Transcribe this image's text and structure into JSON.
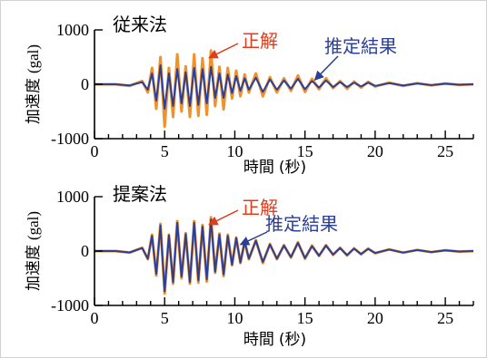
{
  "chart_data": [
    {
      "type": "line",
      "panel_label": "従来法",
      "xlabel": "時間",
      "xunit": "(秒)",
      "ylabel": "加速度",
      "yunit": "(gal)",
      "xlim": [
        0,
        27
      ],
      "ylim": [
        -1000,
        1000
      ],
      "xticks": [
        0,
        5,
        10,
        15,
        20,
        25
      ],
      "yticks": [
        -1000,
        0,
        1000
      ],
      "ytick_labels": [
        "-1000",
        "0",
        "1000"
      ],
      "grid": false,
      "annotations": [
        {
          "text": "正解",
          "color": "#e03c1c",
          "target": {
            "x": 7.9,
            "y": 420
          }
        },
        {
          "text": "推定結果",
          "color": "#2b3f99",
          "target": {
            "x": 15.7,
            "y": 80
          }
        }
      ],
      "series": [
        {
          "color": "#f0922b",
          "x": [
            0,
            1.5,
            2.5,
            3.4,
            3.8,
            4.1,
            4.4,
            4.7,
            5.0,
            5.3,
            5.6,
            5.9,
            6.2,
            6.5,
            6.8,
            7.1,
            7.4,
            7.7,
            8.0,
            8.3,
            8.6,
            8.9,
            9.2,
            9.5,
            9.8,
            10.1,
            10.4,
            10.7,
            11.0,
            11.5,
            12.0,
            12.5,
            13.0,
            13.5,
            14.0,
            14.5,
            15.0,
            15.5,
            16.0,
            16.5,
            17.0,
            17.5,
            18.0,
            18.5,
            19.0,
            19.5,
            20.0,
            21.0,
            22.0,
            23.0,
            24.0,
            25.0,
            26.0,
            27.0
          ],
          "y": [
            0,
            0,
            -30,
            60,
            -150,
            300,
            -450,
            500,
            -780,
            300,
            -600,
            550,
            -500,
            330,
            -600,
            550,
            -580,
            480,
            -560,
            620,
            -400,
            320,
            -460,
            300,
            -260,
            250,
            -220,
            180,
            -150,
            200,
            -220,
            130,
            -150,
            110,
            -120,
            160,
            -140,
            100,
            -90,
            110,
            -70,
            60,
            -80,
            50,
            -60,
            45,
            -40,
            30,
            -30,
            20,
            -20,
            15,
            -10,
            0
          ]
        },
        {
          "color": "#2b3f99",
          "x": [
            0,
            1.5,
            2.5,
            3.4,
            3.8,
            4.1,
            4.4,
            4.7,
            5.0,
            5.3,
            5.6,
            5.9,
            6.2,
            6.5,
            6.8,
            7.1,
            7.4,
            7.7,
            8.0,
            8.3,
            8.6,
            8.9,
            9.2,
            9.5,
            9.8,
            10.1,
            10.4,
            10.7,
            11.0,
            11.5,
            12.0,
            12.5,
            13.0,
            13.5,
            14.0,
            14.5,
            15.0,
            15.5,
            16.0,
            16.5,
            17.0,
            17.5,
            18.0,
            18.5,
            19.0,
            19.5,
            20.0,
            21.0,
            22.0,
            23.0,
            24.0,
            25.0,
            26.0,
            27.0
          ],
          "y": [
            0,
            0,
            -20,
            40,
            -100,
            200,
            -300,
            350,
            -450,
            200,
            -400,
            280,
            -350,
            220,
            -400,
            300,
            -380,
            280,
            -350,
            320,
            -250,
            200,
            -250,
            180,
            -160,
            150,
            -120,
            110,
            -100,
            120,
            -140,
            90,
            -100,
            70,
            -80,
            100,
            -90,
            60,
            -60,
            70,
            -50,
            40,
            -50,
            30,
            -40,
            30,
            -30,
            20,
            -20,
            15,
            -15,
            10,
            -8,
            0
          ]
        }
      ]
    },
    {
      "type": "line",
      "panel_label": "提案法",
      "xlabel": "時間",
      "xunit": "(秒)",
      "ylabel": "加速度",
      "yunit": "(gal)",
      "xlim": [
        0,
        27
      ],
      "ylim": [
        -1000,
        1000
      ],
      "xticks": [
        0,
        5,
        10,
        15,
        20,
        25
      ],
      "yticks": [
        -1000,
        0,
        1000
      ],
      "ytick_labels": [
        "-1000",
        "0",
        "1000"
      ],
      "grid": false,
      "annotations": [
        {
          "text": "正解",
          "color": "#e03c1c",
          "target": {
            "x": 7.9,
            "y": 420
          }
        },
        {
          "text": "推定結果",
          "color": "#2b3f99",
          "target": {
            "x": 10.4,
            "y": 120
          }
        }
      ],
      "series": [
        {
          "color": "#f0922b",
          "x": [
            0,
            1.5,
            2.5,
            3.4,
            3.8,
            4.1,
            4.4,
            4.7,
            5.0,
            5.3,
            5.6,
            5.9,
            6.2,
            6.5,
            6.8,
            7.1,
            7.4,
            7.7,
            8.0,
            8.3,
            8.6,
            8.9,
            9.2,
            9.5,
            9.8,
            10.1,
            10.4,
            10.7,
            11.0,
            11.5,
            12.0,
            12.5,
            13.0,
            13.5,
            14.0,
            14.5,
            15.0,
            15.5,
            16.0,
            16.5,
            17.0,
            17.5,
            18.0,
            18.5,
            19.0,
            19.5,
            20.0,
            21.0,
            22.0,
            23.0,
            24.0,
            25.0,
            26.0,
            27.0
          ],
          "y": [
            0,
            0,
            -30,
            60,
            -150,
            300,
            -450,
            500,
            -780,
            300,
            -600,
            550,
            -500,
            330,
            -600,
            550,
            -580,
            480,
            -560,
            620,
            -400,
            320,
            -460,
            300,
            -260,
            250,
            -220,
            180,
            -150,
            200,
            -220,
            130,
            -150,
            110,
            -120,
            160,
            -140,
            100,
            -90,
            110,
            -70,
            60,
            -80,
            50,
            -60,
            45,
            -40,
            30,
            -30,
            20,
            -20,
            15,
            -10,
            0
          ]
        },
        {
          "color": "#2b3f99",
          "x": [
            0,
            1.5,
            2.5,
            3.4,
            3.8,
            4.1,
            4.4,
            4.7,
            5.0,
            5.3,
            5.6,
            5.9,
            6.2,
            6.5,
            6.8,
            7.1,
            7.4,
            7.7,
            8.0,
            8.3,
            8.6,
            8.9,
            9.2,
            9.5,
            9.8,
            10.1,
            10.4,
            10.7,
            11.0,
            11.5,
            12.0,
            12.5,
            13.0,
            13.5,
            14.0,
            14.5,
            15.0,
            15.5,
            16.0,
            16.5,
            17.0,
            17.5,
            18.0,
            18.5,
            19.0,
            19.5,
            20.0,
            21.0,
            22.0,
            23.0,
            24.0,
            25.0,
            26.0,
            27.0
          ],
          "y": [
            0,
            0,
            -25,
            55,
            -140,
            280,
            -420,
            470,
            -740,
            290,
            -570,
            520,
            -470,
            310,
            -570,
            520,
            -540,
            450,
            -520,
            580,
            -380,
            300,
            -430,
            280,
            -250,
            240,
            -210,
            170,
            -140,
            190,
            -200,
            120,
            -140,
            100,
            -110,
            150,
            -130,
            90,
            -85,
            100,
            -65,
            55,
            -75,
            45,
            -55,
            40,
            -35,
            28,
            -28,
            18,
            -18,
            12,
            -8,
            0
          ]
        }
      ]
    }
  ]
}
